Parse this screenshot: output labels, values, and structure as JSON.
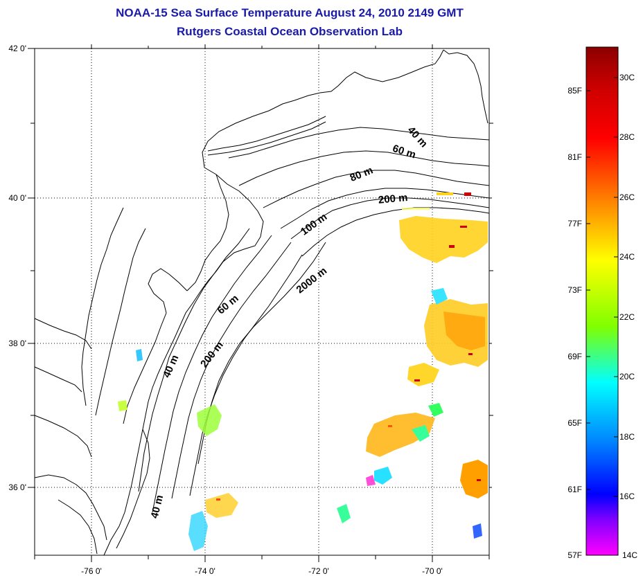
{
  "header": {
    "title": "NOAA-15 Sea Surface Temperature August 24, 2010 2149 GMT",
    "subtitle": "Rutgers Coastal Ocean Observation Lab"
  },
  "map": {
    "x_ticks": [
      "-76 0'",
      "-74 0'",
      "-72 0'",
      "-70 0'"
    ],
    "y_ticks": [
      "42 0'",
      "40 0'",
      "38 0'",
      "36 0'"
    ],
    "lon_range": [
      -77,
      -69
    ],
    "lat_range": [
      35,
      42
    ],
    "depth_labels": [
      "40 m",
      "60 m",
      "80 m",
      "200 m",
      "100 m",
      "2000 m",
      "60 m",
      "40 m",
      "200 m",
      "40 m"
    ]
  },
  "colorbar": {
    "fahrenheit": [
      "85F",
      "81F",
      "77F",
      "73F",
      "69F",
      "65F",
      "61F",
      "57F"
    ],
    "celsius": [
      "30C",
      "28C",
      "26C",
      "24C",
      "22C",
      "20C",
      "18C",
      "16C",
      "14C"
    ],
    "colors": [
      "#8b0000",
      "#ff0000",
      "#ff7f00",
      "#ffff00",
      "#7fff00",
      "#00ffff",
      "#0000ff",
      "#8000ff",
      "#ff00ff"
    ]
  }
}
